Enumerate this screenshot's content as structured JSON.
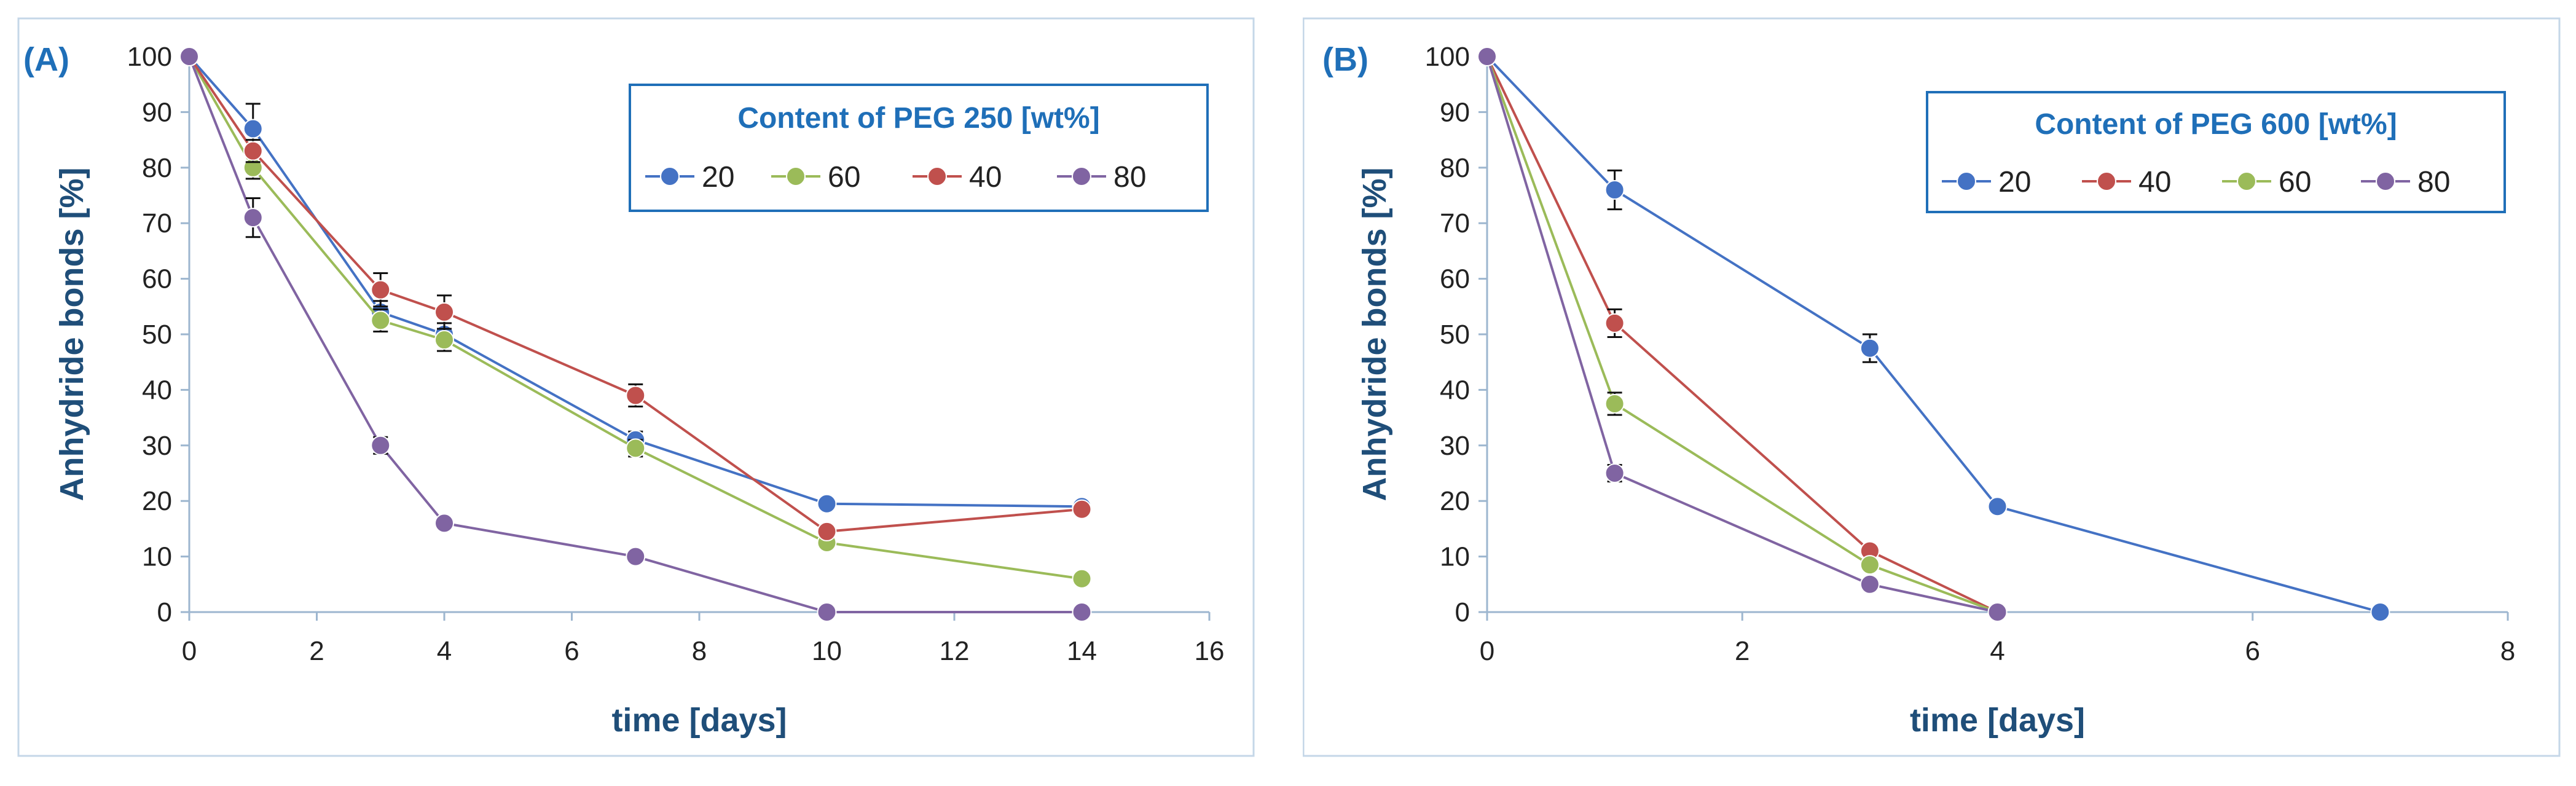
{
  "chart_data": [
    {
      "type": "line",
      "panel_label": "(A)",
      "title": "",
      "xlabel": "time [days]",
      "ylabel": "Anhydride bonds [%]",
      "xlim": [
        0,
        16
      ],
      "ylim": [
        0,
        100
      ],
      "xticks": [
        "0",
        "2",
        "4",
        "6",
        "8",
        "10",
        "12",
        "14",
        "16"
      ],
      "yticks": [
        "0",
        "10",
        "20",
        "30",
        "40",
        "50",
        "60",
        "70",
        "80",
        "90",
        "100"
      ],
      "legend": {
        "title": "Content of PEG 250 [wt%]",
        "placement": "top-right"
      },
      "series": [
        {
          "name": "20",
          "color": "#4472c4",
          "x": [
            0,
            1,
            3,
            4,
            7,
            10,
            14
          ],
          "y": [
            100,
            87,
            54,
            50,
            31,
            19.5,
            19
          ],
          "err": [
            0,
            4.5,
            2,
            2,
            1.5,
            0,
            0
          ]
        },
        {
          "name": "60",
          "color": "#9bbb59",
          "x": [
            0,
            1,
            3,
            4,
            7,
            10,
            14
          ],
          "y": [
            100,
            80,
            52.5,
            49,
            29.5,
            12.5,
            6
          ],
          "err": [
            0,
            2,
            2,
            2,
            1.5,
            0,
            0
          ]
        },
        {
          "name": "40",
          "color": "#c0504d",
          "x": [
            0,
            1,
            3,
            4,
            7,
            10,
            14
          ],
          "y": [
            100,
            83,
            58,
            54,
            39,
            14.5,
            18.5
          ],
          "err": [
            0,
            2,
            3,
            3,
            2,
            0,
            0
          ]
        },
        {
          "name": "80",
          "color": "#8064a2",
          "x": [
            0,
            1,
            3,
            4,
            7,
            10,
            14
          ],
          "y": [
            100,
            71,
            30,
            16,
            10,
            0,
            0
          ],
          "err": [
            0,
            3.5,
            1.5,
            0,
            0,
            0,
            0
          ]
        }
      ]
    },
    {
      "type": "line",
      "panel_label": "(B)",
      "title": "",
      "xlabel": "time [days]",
      "ylabel": "Anhydride bonds [%]",
      "xlim": [
        0,
        8
      ],
      "ylim": [
        0,
        100
      ],
      "xticks": [
        "0",
        "2",
        "4",
        "6",
        "8"
      ],
      "yticks": [
        "0",
        "10",
        "20",
        "30",
        "40",
        "50",
        "60",
        "70",
        "80",
        "90",
        "100"
      ],
      "legend": {
        "title": "Content of PEG 600 [wt%]",
        "placement": "top-right"
      },
      "series": [
        {
          "name": "20",
          "color": "#4472c4",
          "x": [
            0,
            1,
            3,
            4,
            7
          ],
          "y": [
            100,
            76,
            47.5,
            19,
            0
          ],
          "err": [
            0,
            3.5,
            2.5,
            0,
            0
          ]
        },
        {
          "name": "40",
          "color": "#c0504d",
          "x": [
            0,
            1,
            3,
            4
          ],
          "y": [
            100,
            52,
            11,
            0
          ],
          "err": [
            0,
            2.5,
            0,
            0
          ]
        },
        {
          "name": "60",
          "color": "#9bbb59",
          "x": [
            0,
            1,
            3,
            4
          ],
          "y": [
            100,
            37.5,
            8.5,
            0
          ],
          "err": [
            0,
            2,
            0,
            0
          ]
        },
        {
          "name": "80",
          "color": "#8064a2",
          "x": [
            0,
            1,
            3,
            4
          ],
          "y": [
            100,
            25,
            5,
            0
          ],
          "err": [
            0,
            1.5,
            0,
            0
          ]
        }
      ]
    }
  ]
}
